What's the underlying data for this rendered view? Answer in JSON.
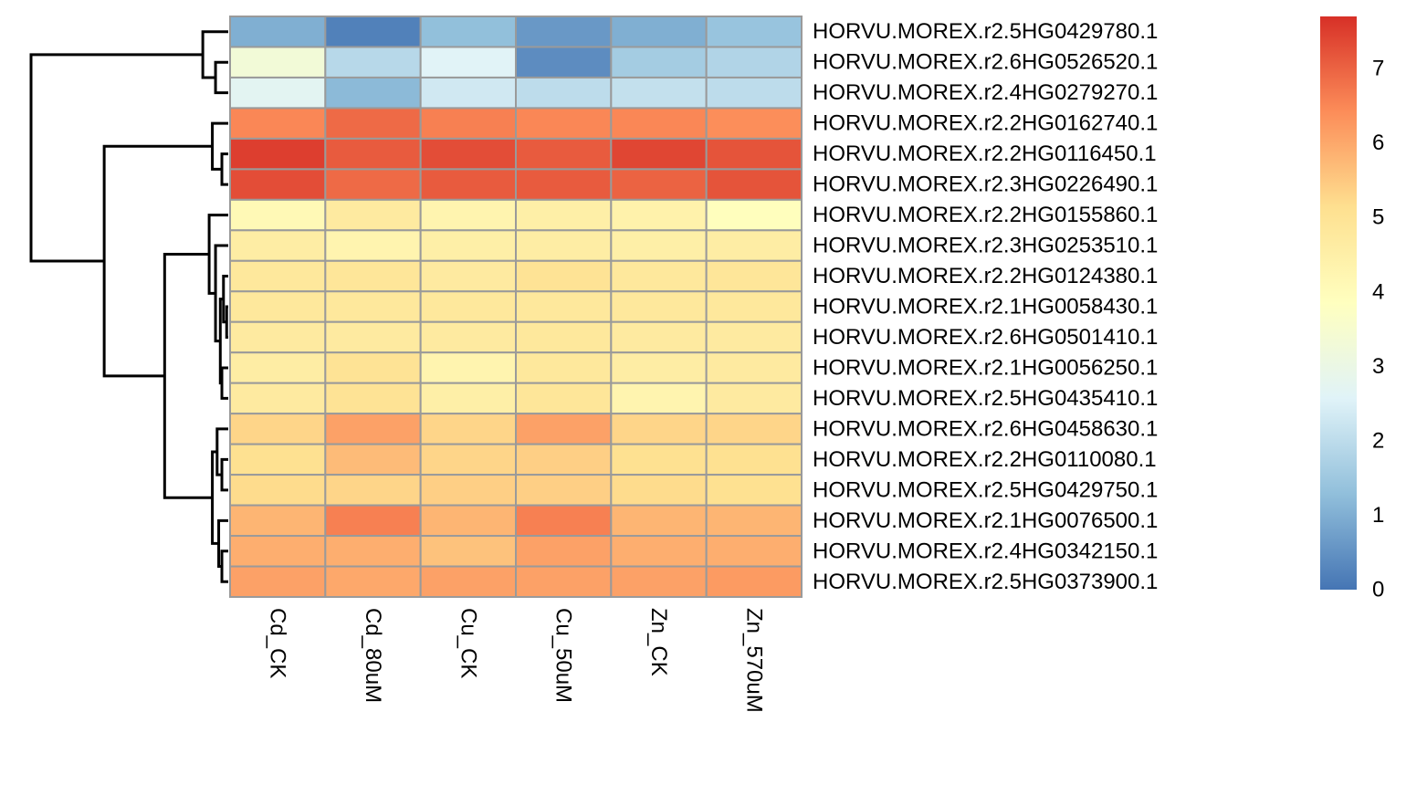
{
  "chart_data": {
    "type": "heatmap",
    "title": "",
    "xlabel": "",
    "ylabel": "",
    "columns": [
      "Cd_CK",
      "Cd_80uM",
      "Cu_CK",
      "Cu_50uM",
      "Zn_CK",
      "Zn_570uM"
    ],
    "rows": [
      "HORVU.MOREX.r2.5HG0429780.1",
      "HORVU.MOREX.r2.6HG0526520.1",
      "HORVU.MOREX.r2.4HG0279270.1",
      "HORVU.MOREX.r2.2HG0162740.1",
      "HORVU.MOREX.r2.2HG0116450.1",
      "HORVU.MOREX.r2.3HG0226490.1",
      "HORVU.MOREX.r2.2HG0155860.1",
      "HORVU.MOREX.r2.3HG0253510.1",
      "HORVU.MOREX.r2.2HG0124380.1",
      "HORVU.MOREX.r2.1HG0058430.1",
      "HORVU.MOREX.r2.6HG0501410.1",
      "HORVU.MOREX.r2.1HG0056250.1",
      "HORVU.MOREX.r2.5HG0435410.1",
      "HORVU.MOREX.r2.6HG0458630.1",
      "HORVU.MOREX.r2.2HG0110080.1",
      "HORVU.MOREX.r2.5HG0429750.1",
      "HORVU.MOREX.r2.1HG0076500.1",
      "HORVU.MOREX.r2.4HG0342150.1",
      "HORVU.MOREX.r2.5HG0373900.1"
    ],
    "values": [
      [
        1.0,
        0.2,
        1.3,
        0.6,
        1.0,
        1.4
      ],
      [
        3.3,
        1.9,
        2.6,
        0.4,
        1.6,
        1.8
      ],
      [
        2.7,
        1.2,
        2.3,
        2.0,
        2.1,
        2.0
      ],
      [
        6.5,
        6.9,
        6.6,
        6.5,
        6.5,
        6.4
      ],
      [
        7.5,
        7.1,
        7.3,
        7.1,
        7.4,
        7.2
      ],
      [
        7.3,
        6.9,
        7.1,
        7.1,
        7.0,
        7.2
      ],
      [
        4.1,
        4.7,
        4.3,
        4.5,
        4.4,
        3.9
      ],
      [
        4.6,
        4.3,
        4.5,
        4.6,
        4.5,
        4.6
      ],
      [
        4.8,
        4.9,
        4.7,
        5.0,
        4.8,
        4.9
      ],
      [
        4.8,
        4.8,
        4.8,
        4.8,
        4.8,
        4.8
      ],
      [
        4.7,
        4.7,
        4.7,
        4.8,
        4.7,
        4.7
      ],
      [
        4.6,
        5.0,
        4.3,
        4.8,
        4.6,
        4.7
      ],
      [
        4.7,
        5.0,
        4.5,
        4.9,
        4.3,
        4.7
      ],
      [
        5.3,
        6.1,
        5.3,
        6.1,
        5.3,
        5.3
      ],
      [
        5.1,
        5.7,
        5.3,
        5.4,
        5.1,
        5.1
      ],
      [
        5.2,
        5.3,
        5.4,
        5.4,
        5.2,
        5.1
      ],
      [
        5.8,
        6.6,
        5.8,
        6.6,
        5.8,
        5.8
      ],
      [
        5.9,
        5.9,
        5.6,
        6.1,
        5.9,
        5.9
      ],
      [
        6.1,
        6.0,
        6.1,
        6.1,
        6.1,
        6.2
      ]
    ],
    "legend": {
      "min": 0,
      "max": 7.7,
      "ticks": [
        0,
        1,
        2,
        3,
        4,
        5,
        6,
        7
      ],
      "colors": [
        "#4575B4",
        "#91BFDB",
        "#E0F3F8",
        "#FFFFBF",
        "#FEE090",
        "#FC8D59",
        "#D73027"
      ],
      "placement": "right"
    },
    "row_dendrogram": {
      "placement": "left",
      "merges": [
        {
          "left": 2,
          "right": 3,
          "height": 0.4
        },
        {
          "left": 1,
          "right": -1,
          "height": 0.8
        },
        {
          "left": 5,
          "right": 6,
          "height": 0.2
        },
        {
          "left": 4,
          "right": -3,
          "height": 0.5
        },
        {
          "left": 10,
          "right": 11,
          "height": 0.05
        },
        {
          "left": 9,
          "right": -5,
          "height": 0.15
        },
        {
          "left": 12,
          "right": 13,
          "height": 0.2
        },
        {
          "left": -6,
          "right": -7,
          "height": 0.25
        },
        {
          "left": 8,
          "right": -8,
          "height": 0.4
        },
        {
          "left": 7,
          "right": -9,
          "height": 0.6
        },
        {
          "left": 15,
          "right": 16,
          "height": 0.2
        },
        {
          "left": 14,
          "right": -11,
          "height": 0.35
        },
        {
          "left": 18,
          "right": 19,
          "height": 0.2
        },
        {
          "left": 17,
          "right": -13,
          "height": 0.3
        },
        {
          "left": -12,
          "right": -14,
          "height": 0.5
        },
        {
          "left": -10,
          "right": -15,
          "height": 2.0
        },
        {
          "left": -4,
          "right": -16,
          "height": 3.9
        },
        {
          "left": -2,
          "right": -17,
          "height": 6.2
        }
      ]
    }
  }
}
